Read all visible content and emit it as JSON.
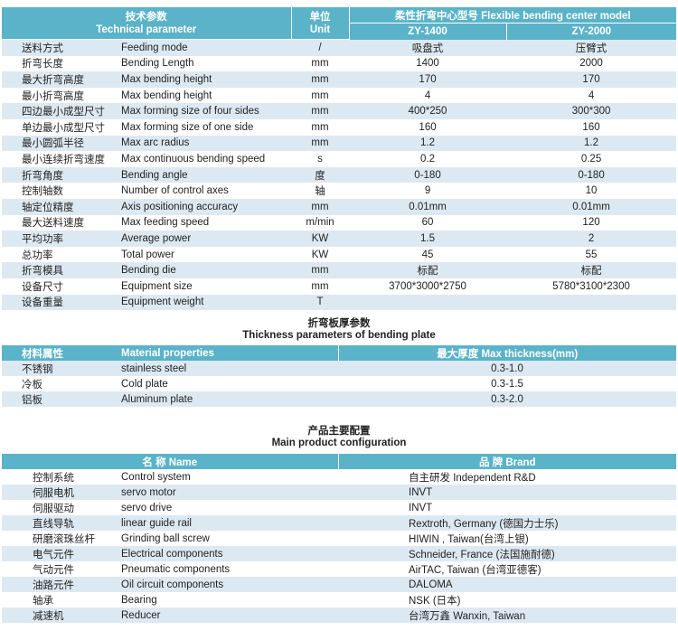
{
  "tech_table": {
    "header": {
      "param_cn": "技术参数",
      "param_en": "Technical parameter",
      "unit_cn": "单位",
      "unit_en": "Unit",
      "model_group": "柔性折弯中心型号  Flexible bending center model",
      "models": [
        "ZY-1400",
        "ZY-2000"
      ]
    },
    "rows": [
      {
        "cn": "送料方式",
        "en": "Feeding mode",
        "unit": "/",
        "v1": "吸盘式",
        "v2": "压臂式"
      },
      {
        "cn": "折弯长度",
        "en": "Bending Length",
        "unit": "mm",
        "v1": "1400",
        "v2": "2000"
      },
      {
        "cn": "最大折弯高度",
        "en": "Max bending height",
        "unit": "mm",
        "v1": "170",
        "v2": "170"
      },
      {
        "cn": "最小折弯高度",
        "en": "Max bending height",
        "unit": "mm",
        "v1": "4",
        "v2": "4"
      },
      {
        "cn": "四边最小成型尺寸",
        "en": "Max forming size of four sides",
        "unit": "mm",
        "v1": "400*250",
        "v2": "300*300"
      },
      {
        "cn": "单边最小成型尺寸",
        "en": "Max forming size of one side",
        "unit": "mm",
        "v1": "160",
        "v2": "160"
      },
      {
        "cn": "最小圆弧半径",
        "en": "Max arc radius",
        "unit": "mm",
        "v1": "1.2",
        "v2": "1.2"
      },
      {
        "cn": "最小连续折弯速度",
        "en": "Max continuous bending speed",
        "unit": "s",
        "v1": "0.2",
        "v2": "0.25"
      },
      {
        "cn": "折弯角度",
        "en": "Bending angle",
        "unit": "度",
        "v1": "0-180",
        "v2": "0-180"
      },
      {
        "cn": "控制轴数",
        "en": "Number of control axes",
        "unit": "轴",
        "v1": "9",
        "v2": "10"
      },
      {
        "cn": "轴定位精度",
        "en": "Axis positioning accuracy",
        "unit": "mm",
        "v1": "0.01mm",
        "v2": "0.01mm"
      },
      {
        "cn": "最大送料速度",
        "en": "Max feeding speed",
        "unit": "m/min",
        "v1": "60",
        "v2": "120"
      },
      {
        "cn": "平均功率",
        "en": "Average power",
        "unit": "KW",
        "v1": "1.5",
        "v2": "2"
      },
      {
        "cn": "总功率",
        "en": "Total power",
        "unit": "KW",
        "v1": "45",
        "v2": "55"
      },
      {
        "cn": "折弯模具",
        "en": "Bending die",
        "unit": "mm",
        "v1": "标配",
        "v2": "标配"
      },
      {
        "cn": "设备尺寸",
        "en": "Equipment size",
        "unit": "mm",
        "v1": "3700*3000*2750",
        "v2": "5780*3100*2300"
      },
      {
        "cn": "设备重量",
        "en": "Equipment weight",
        "unit": "T",
        "v1": "",
        "v2": ""
      }
    ]
  },
  "thickness": {
    "title_cn": "折弯板厚参数",
    "title_en": "Thickness parameters of bending plate",
    "header": {
      "cn": "材料属性",
      "en": "Material properties",
      "max": "最大厚度  Max thickness(mm)"
    },
    "rows": [
      {
        "cn": "不锈钢",
        "en": "stainless steel",
        "v": "0.3-1.0"
      },
      {
        "cn": "冷板",
        "en": "Cold plate",
        "v": "0.3-1.5"
      },
      {
        "cn": "铝板",
        "en": "Aluminum plate",
        "v": "0.3-2.0"
      }
    ]
  },
  "config": {
    "title_cn": "产品主要配置",
    "title_en": "Main product configuration",
    "header": {
      "name": "名   称 Name",
      "brand": "品   牌  Brand"
    },
    "rows": [
      {
        "cn": "控制系统",
        "en": "Control system",
        "brand": "自主研发  Independent R&D"
      },
      {
        "cn": "伺服电机",
        "en": "servo motor",
        "brand": "INVT"
      },
      {
        "cn": "伺服驱动",
        "en": "servo drive",
        "brand": "INVT"
      },
      {
        "cn": "直线导轨",
        "en": "linear guide rail",
        "brand": "Rextroth, Germany (德国力士乐)"
      },
      {
        "cn": "研磨滚珠丝杆",
        "en": "Grinding ball screw",
        "brand": "HIWIN , Taiwan(台湾上银)"
      },
      {
        "cn": "电气元件",
        "en": "Electrical components",
        "brand": "Schneider, France (法国施耐德)"
      },
      {
        "cn": "气动元件",
        "en": "Pneumatic components",
        "brand": "AirTAC, Taiwan (台湾亚德客)"
      },
      {
        "cn": "油路元件",
        "en": "Oil circuit components",
        "brand": "DALOMA"
      },
      {
        "cn": "轴承",
        "en": "Bearing",
        "brand": "NSK (日本)"
      },
      {
        "cn": "减速机",
        "en": "Reducer",
        "brand": "台湾万鑫  Wanxin, Taiwan"
      }
    ]
  }
}
